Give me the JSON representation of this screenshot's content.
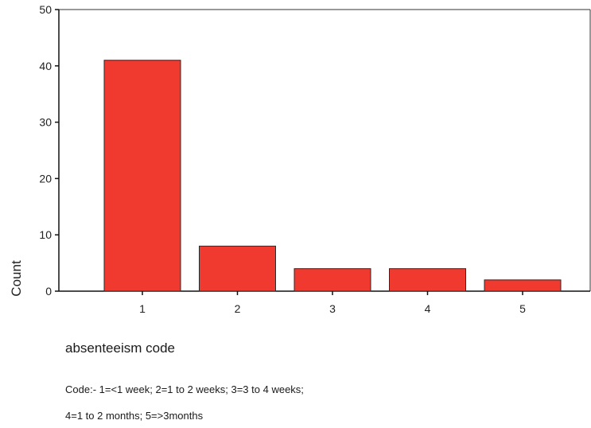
{
  "chart_data": {
    "type": "bar",
    "categories": [
      "1",
      "2",
      "3",
      "4",
      "5"
    ],
    "values": [
      41,
      8,
      4,
      4,
      2
    ],
    "ylabel": "Count",
    "xlabel": "absenteeism code",
    "ylim": [
      0,
      50
    ],
    "yticks": [
      "0",
      "10",
      "20",
      "30",
      "40",
      "50"
    ],
    "bar_color": "#f03a30",
    "grid": false
  },
  "notes": {
    "line1": "Code:- 1=<1 week; 2=1 to 2 weeks; 3=3 to 4 weeks;",
    "line2": "4=1 to 2 months; 5=>3months"
  }
}
